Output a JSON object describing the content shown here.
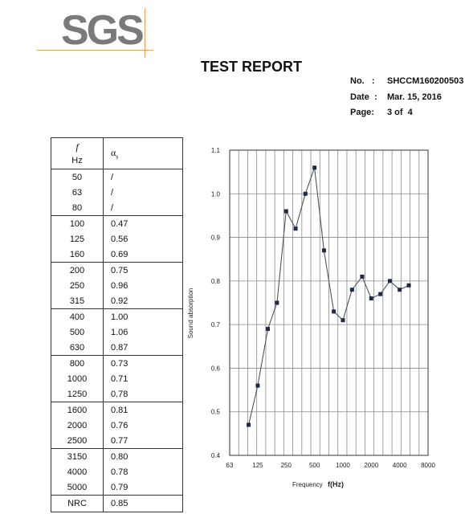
{
  "logo": {
    "text": "SGS"
  },
  "header": {
    "title": "TEST REPORT",
    "no_label": "No.",
    "no_sep": ":",
    "no_value": "SHCCM160200503",
    "date_label": "Date",
    "date_sep": ":",
    "date_value": "Mar. 15, 2016",
    "page_label": "Page:",
    "page_value": "3 of  4"
  },
  "table": {
    "col1_symbol": "f",
    "col1_unit": "Hz",
    "col2_symbol": "α",
    "col2_sub": "s",
    "groups": [
      [
        {
          "f": "50",
          "a": "/"
        },
        {
          "f": "63",
          "a": "/"
        },
        {
          "f": "80",
          "a": "/"
        }
      ],
      [
        {
          "f": "100",
          "a": "0.47"
        },
        {
          "f": "125",
          "a": "0.56"
        },
        {
          "f": "160",
          "a": "0.69"
        }
      ],
      [
        {
          "f": "200",
          "a": "0.75"
        },
        {
          "f": "250",
          "a": "0.96"
        },
        {
          "f": "315",
          "a": "0.92"
        }
      ],
      [
        {
          "f": "400",
          "a": "1.00"
        },
        {
          "f": "500",
          "a": "1.06"
        },
        {
          "f": "630",
          "a": "0.87"
        }
      ],
      [
        {
          "f": "800",
          "a": "0.73"
        },
        {
          "f": "1000",
          "a": "0.71"
        },
        {
          "f": "1250",
          "a": "0.78"
        }
      ],
      [
        {
          "f": "1600",
          "a": "0.81"
        },
        {
          "f": "2000",
          "a": "0.76"
        },
        {
          "f": "2500",
          "a": "0.77"
        }
      ],
      [
        {
          "f": "3150",
          "a": "0.80"
        },
        {
          "f": "4000",
          "a": "0.78"
        },
        {
          "f": "5000",
          "a": "0.79"
        }
      ]
    ],
    "nrc_label": "NRC",
    "nrc_value": "0.85"
  },
  "chart_data": {
    "type": "line",
    "x": [
      100,
      125,
      160,
      200,
      250,
      315,
      400,
      500,
      630,
      800,
      1000,
      1250,
      1600,
      2000,
      2500,
      3150,
      4000,
      5000
    ],
    "series": [
      {
        "values": [
          0.47,
          0.56,
          0.69,
          0.75,
          0.96,
          0.92,
          1.0,
          1.06,
          0.87,
          0.73,
          0.71,
          0.78,
          0.81,
          0.76,
          0.77,
          0.8,
          0.78,
          0.79
        ]
      }
    ],
    "x_scale": "log",
    "xlim": [
      63,
      8000
    ],
    "x_ticks": [
      63,
      125,
      250,
      500,
      1000,
      2000,
      4000,
      8000
    ],
    "x_tick_labels": [
      "63",
      "125",
      "250",
      "500",
      "1000",
      "2000",
      "4000",
      "8000"
    ],
    "ylim": [
      0.4,
      1.1
    ],
    "y_ticks": [
      0.4,
      0.5,
      0.6,
      0.7,
      0.8,
      0.9,
      1.0,
      1.1
    ],
    "y_tick_labels": [
      "0.4",
      "0.5",
      "0.6",
      "0.7",
      "0.8",
      "0.9",
      "1.0",
      "1.1"
    ],
    "xlabel": "Frequency",
    "xlabel_unit": "f(Hz)",
    "ylabel": "Sound absorption",
    "grid": true,
    "line_color": "#4a5560",
    "marker_color": "#1f2a44"
  }
}
